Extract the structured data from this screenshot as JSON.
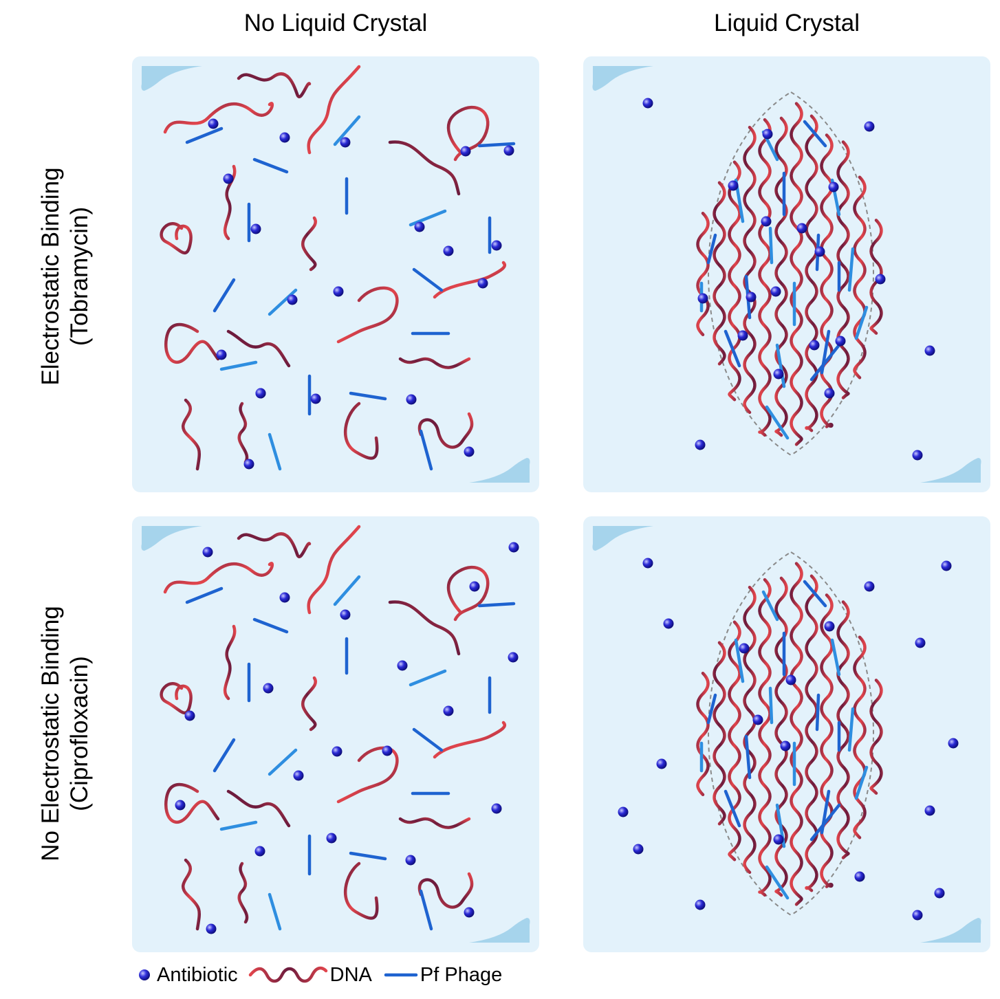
{
  "columns": {
    "left": "No Liquid Crystal",
    "right": "Liquid Crystal"
  },
  "rows": {
    "top": {
      "line1": "Electrostatic Binding",
      "line2": "(Tobramycin)"
    },
    "bottom": {
      "line1": "No Electrostatic Binding",
      "line2": "(Ciprofloxacin)"
    }
  },
  "legend": {
    "antibiotic": "Antibiotic",
    "dna": "DNA",
    "phage": "Pf Phage"
  },
  "colors": {
    "panel_bg": "#e3f2fb",
    "corner": "#a6d4ec",
    "dna_dark": "#6b1b3d",
    "dna_red": "#e2454c",
    "phage": "#1e63d0",
    "phage_light": "#2e8ee0",
    "antibiotic": "#2a2ad6",
    "outline": "#8a8a8a"
  }
}
